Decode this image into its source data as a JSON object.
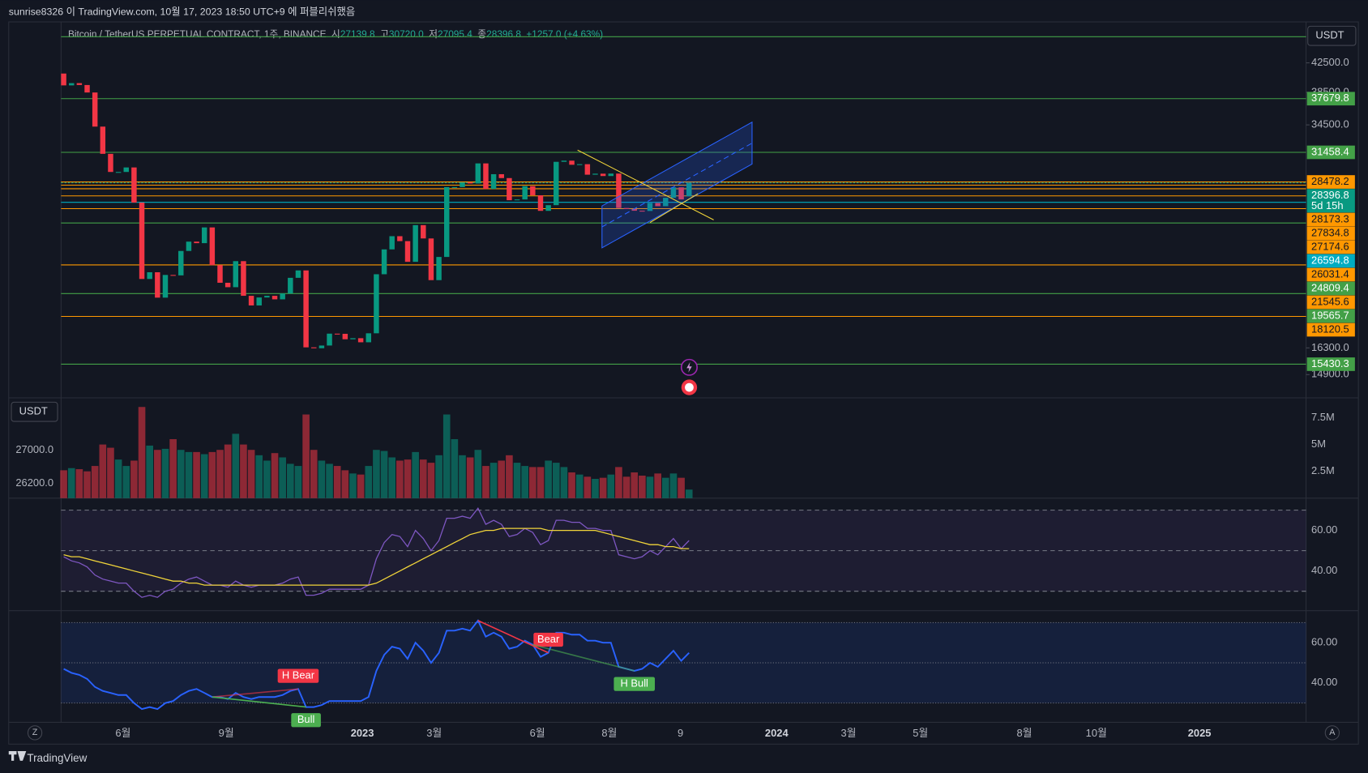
{
  "header": {
    "publish": "sunrise8326 이 TradingView.com, 10월 17, 2023 18:50 UTC+9 에 퍼블리쉬했음",
    "symbol": "Bitcoin / TetherUS PERPETUAL CONTRACT, 1주, BINANCE",
    "open_label": "시",
    "open": "27139.8",
    "high_label": "고",
    "high": "30720.0",
    "low_label": "저",
    "low": "27095.4",
    "close_label": "종",
    "close": "28396.8",
    "change": "+1257.0 (+4.63%)",
    "currency": "USDT",
    "brand": "TradingView",
    "left_currency": "USDT",
    "left_labels": [
      "27000.0",
      "26200.0"
    ],
    "button_z": "Z",
    "button_a": "A"
  },
  "chart_data": {
    "type": "candlestick",
    "log": true,
    "ylim": [
      13780,
      48350
    ],
    "yticks": [
      {
        "value": 42500,
        "label": "42500.0"
      },
      {
        "value": 38500,
        "label": "38500.0"
      },
      {
        "value": 34500,
        "label": "34500.0"
      },
      {
        "value": 16300,
        "label": "16300.0"
      },
      {
        "value": 14900,
        "label": "14900.0"
      }
    ],
    "open": [
      41000,
      39400,
      39700,
      39450,
      38470,
      34300,
      31300,
      29450,
      29450,
      29900,
      26570,
      20550,
      21020,
      19300,
      20830,
      20800,
      22580,
      23300,
      23180,
      24440,
      21530,
      20290,
      19990,
      21820,
      19420,
      18800,
      19310,
      19420,
      19190,
      19570,
      20630,
      21150,
      16330,
      16280,
      16430,
      17100,
      17090,
      16780,
      16840,
      16610,
      17120,
      20880,
      22700,
      23730,
      23340,
      21770,
      24630,
      23550,
      20470,
      22130,
      27990,
      27990,
      28450,
      28330,
      30310,
      27820,
      29230,
      28850,
      26780,
      26850,
      28080,
      27230,
      25840,
      26340,
      30470,
      30590,
      30170,
      30230,
      29180,
      29280,
      29050,
      29290,
      26090,
      26000,
      25850,
      25830,
      26530,
      26250,
      27000,
      27960,
      27139.8
    ],
    "close": [
      39400,
      39700,
      39450,
      38470,
      34300,
      31300,
      29450,
      29450,
      29900,
      26570,
      20550,
      21020,
      19300,
      20830,
      20800,
      22580,
      23300,
      23180,
      24440,
      21530,
      20290,
      19990,
      21820,
      19420,
      18800,
      19310,
      19420,
      19190,
      19570,
      20630,
      21150,
      16330,
      16280,
      16430,
      17100,
      17090,
      16780,
      16840,
      16610,
      17120,
      20880,
      22700,
      23730,
      23340,
      21770,
      24630,
      23550,
      20470,
      22130,
      27990,
      27990,
      28450,
      28330,
      30310,
      27820,
      29230,
      28850,
      26780,
      26850,
      28080,
      27230,
      25840,
      26340,
      30470,
      30590,
      30170,
      30230,
      29180,
      29280,
      29050,
      29290,
      26090,
      26000,
      25850,
      25830,
      26530,
      26250,
      27000,
      27960,
      26850,
      28396.8
    ],
    "levels": [
      {
        "value": 37679.8,
        "label": "37679.8",
        "color": "#43a047"
      },
      {
        "value": 31458.4,
        "label": "31458.4",
        "color": "#43a047"
      },
      {
        "value": 28478.2,
        "label": "28478.2",
        "color": "#ff9800"
      },
      {
        "value": 28396.8,
        "label": "28396.8",
        "color": "#089981",
        "countdown": "5d 15h"
      },
      {
        "value": 28173.3,
        "label": "28173.3",
        "color": "#ff9800"
      },
      {
        "value": 27834.8,
        "label": "27834.8",
        "color": "#ff9800"
      },
      {
        "value": 27174.6,
        "label": "27174.6",
        "color": "#ff9800"
      },
      {
        "value": 26594.8,
        "label": "26594.8",
        "color": "#00acc1"
      },
      {
        "value": 26031.4,
        "label": "26031.4",
        "color": "#ff9800"
      },
      {
        "value": 24809.4,
        "label": "24809.4",
        "color": "#43a047"
      },
      {
        "value": 21545.6,
        "label": "21545.6",
        "color": "#ff9800"
      },
      {
        "value": 19565.7,
        "label": "19565.7",
        "color": "#43a047"
      },
      {
        "value": 18120.5,
        "label": "18120.5",
        "color": "#ff9800"
      },
      {
        "value": 15430.3,
        "label": "15430.3",
        "color": "#43a047"
      }
    ],
    "xticks": [
      {
        "value": 7.6,
        "label": "6월"
      },
      {
        "value": 20.8,
        "label": "9월"
      },
      {
        "value": 38.2,
        "label": "2023"
      },
      {
        "value": 47.4,
        "label": "3월"
      },
      {
        "value": 60.6,
        "label": "6월"
      },
      {
        "value": 69.8,
        "label": "8월"
      },
      {
        "value": 78.9,
        "label": "9"
      },
      {
        "value": 91.2,
        "label": "2024"
      },
      {
        "value": 100.4,
        "label": "3월"
      },
      {
        "value": 109.6,
        "label": "5월"
      },
      {
        "value": 122.9,
        "label": "8월"
      },
      {
        "value": 132.1,
        "label": "10월"
      },
      {
        "value": 145.3,
        "label": "2025"
      }
    ],
    "volume": {
      "ylim": [
        0,
        9.27
      ],
      "yticks": [
        {
          "value": 7.5,
          "label": "7.5M"
        },
        {
          "value": 5,
          "label": "5M"
        },
        {
          "value": 2.5,
          "label": "2.5M"
        }
      ],
      "values": [
        2.6,
        2.8,
        2.7,
        2.5,
        3.0,
        5.0,
        4.7,
        3.6,
        3.0,
        3.5,
        8.5,
        4.9,
        4.5,
        4.6,
        5.5,
        4.5,
        4.3,
        4.3,
        4.1,
        4.3,
        4.5,
        5.0,
        6.0,
        5.0,
        4.5,
        4.0,
        3.5,
        4.2,
        3.8,
        3.2,
        3.0,
        7.8,
        4.5,
        3.5,
        3.2,
        3.0,
        2.6,
        2.3,
        2.2,
        3.0,
        4.5,
        4.4,
        3.8,
        3.5,
        3.6,
        4.3,
        3.6,
        3.3,
        4.0,
        7.8,
        5.5,
        4.0,
        3.8,
        4.5,
        3.0,
        3.3,
        3.5,
        4.0,
        3.3,
        3.0,
        2.9,
        2.9,
        3.5,
        3.3,
        2.9,
        2.4,
        2.2,
        2.0,
        1.8,
        1.9,
        2.2,
        2.9,
        2.0,
        2.4,
        2.1,
        2.0,
        2.3,
        1.9,
        2.3,
        1.9,
        0.8
      ]
    },
    "rsi": {
      "ylim": [
        20.4,
        75.5
      ],
      "yticks": [
        {
          "value": 60,
          "label": "60.00"
        },
        {
          "value": 40,
          "label": "40.00"
        }
      ],
      "bands": [
        70,
        50,
        30
      ],
      "values": [
        47,
        45,
        44,
        42,
        38,
        36,
        35,
        34,
        34,
        30,
        27,
        28,
        27,
        30,
        31,
        34,
        36,
        37,
        35,
        33,
        33,
        32,
        35,
        33,
        32,
        33,
        33,
        33,
        34,
        36,
        37,
        28,
        28,
        29,
        31,
        31,
        31,
        31,
        31,
        33,
        46,
        54,
        58,
        57,
        52,
        60,
        56,
        50,
        55,
        66,
        66,
        67,
        66,
        71,
        63,
        65,
        63,
        57,
        58,
        61,
        59,
        53,
        55,
        65,
        65,
        64,
        64,
        61,
        61,
        60,
        60,
        48,
        47,
        46,
        47,
        50,
        48,
        52,
        56,
        51,
        55
      ],
      "ma": [
        48,
        47,
        47,
        46,
        45,
        44,
        43,
        42,
        41,
        40,
        39,
        38,
        37,
        36,
        35,
        35,
        34,
        34,
        33,
        33,
        33,
        33,
        33,
        33,
        33,
        33,
        33,
        33,
        33,
        33,
        33,
        33,
        33,
        33,
        33,
        33,
        33,
        33,
        33,
        33,
        34,
        36,
        38,
        40,
        42,
        44,
        46,
        48,
        50,
        52,
        54,
        56,
        58,
        59,
        60,
        60,
        61,
        61,
        61,
        61,
        61,
        61,
        60,
        60,
        60,
        60,
        60,
        60,
        60,
        59,
        58,
        57,
        56,
        55,
        54,
        53,
        53,
        52,
        52,
        51,
        51
      ]
    },
    "divergences": [
      {
        "label": "Bear",
        "from": 53,
        "to": 62,
        "side": "above",
        "color": "#f23645"
      },
      {
        "label": "H Bear",
        "from": 19,
        "to": 30,
        "side": "above",
        "color": "#f23645"
      },
      {
        "label": "Bull",
        "from": 19,
        "to": 31,
        "side": "below",
        "color": "#4caf50"
      },
      {
        "label": "H Bull",
        "from": 60,
        "to": 73,
        "side": "below",
        "color": "#4caf50"
      }
    ]
  }
}
